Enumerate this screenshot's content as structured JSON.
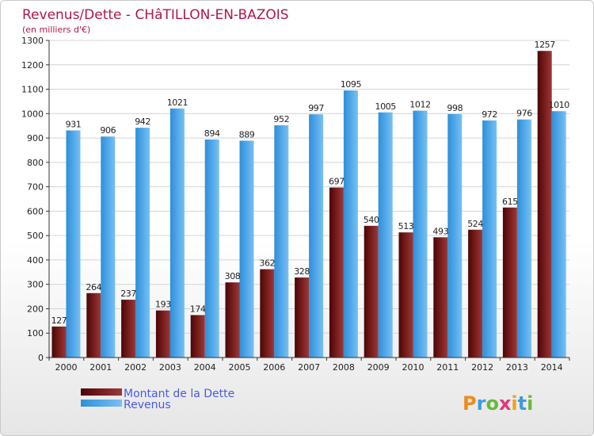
{
  "chart_data": {
    "type": "bar",
    "title": "Revenus/Dette - CHâTILLON-EN-BAZOIS",
    "subtitle": "(en milliers d'€)",
    "categories": [
      "2000",
      "2001",
      "2002",
      "2003",
      "2004",
      "2005",
      "2006",
      "2007",
      "2008",
      "2009",
      "2010",
      "2011",
      "2012",
      "2013",
      "2014"
    ],
    "series": [
      {
        "name": "Montant de la Dette",
        "color": "#7a1c1c",
        "values": [
          127,
          264,
          237,
          193,
          174,
          308,
          362,
          328,
          697,
          540,
          513,
          493,
          524,
          615,
          1257
        ]
      },
      {
        "name": "Revenus",
        "color": "#4aa3e8",
        "values": [
          931,
          906,
          942,
          1021,
          894,
          889,
          952,
          997,
          1095,
          1005,
          1012,
          998,
          972,
          976,
          1010
        ]
      }
    ],
    "ylim": [
      0,
      1300
    ],
    "yticks": [
      0,
      100,
      200,
      300,
      400,
      500,
      600,
      700,
      800,
      900,
      1000,
      1100,
      1200,
      1300
    ],
    "grid": true,
    "legend": "bottom-left"
  },
  "branding": {
    "logo_text": "Proxiti"
  }
}
